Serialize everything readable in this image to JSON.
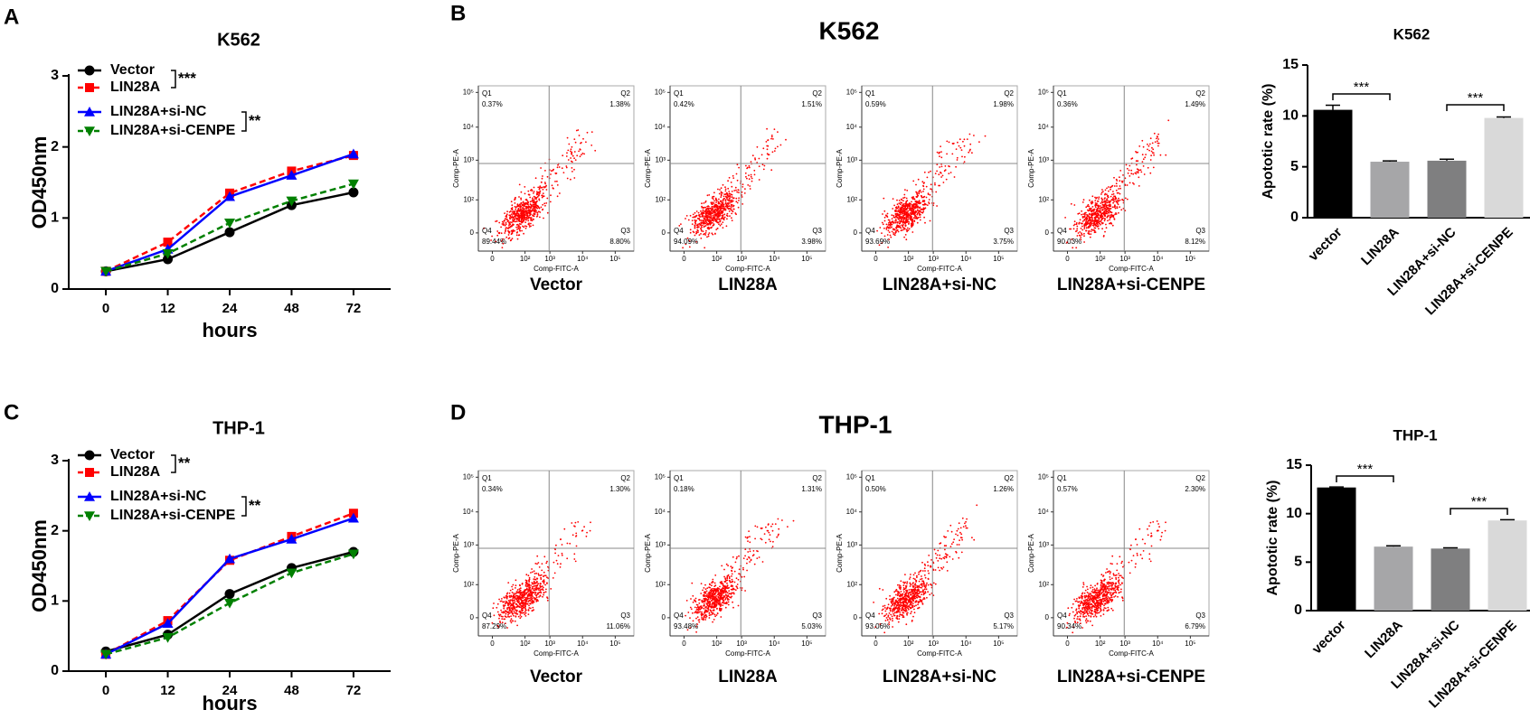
{
  "chart_data": [
    {
      "type": "line",
      "panel": "A",
      "title": "K562",
      "x_label": "hours",
      "y_label": "OD450nm",
      "categories": [
        "0",
        "12",
        "24",
        "48",
        "72"
      ],
      "ylim": [
        0,
        3
      ],
      "yticks": [
        0,
        1,
        2,
        3
      ],
      "series": [
        {
          "name": "Vector",
          "color": "#000000",
          "dashed": false,
          "marker": "circle",
          "values": [
            0.25,
            0.42,
            0.8,
            1.18,
            1.36
          ]
        },
        {
          "name": "LIN28A",
          "color": "#ff0000",
          "dashed": true,
          "marker": "square",
          "values": [
            0.25,
            0.66,
            1.35,
            1.66,
            1.88
          ]
        },
        {
          "name": "LIN28A+si-NC",
          "color": "#0000ff",
          "dashed": false,
          "marker": "triangle",
          "values": [
            0.25,
            0.56,
            1.3,
            1.6,
            1.9
          ]
        },
        {
          "name": "LIN28A+si-CENPE",
          "color": "#008000",
          "dashed": true,
          "marker": "triangle-down",
          "values": [
            0.25,
            0.5,
            0.93,
            1.24,
            1.48
          ]
        }
      ],
      "annotations": [
        "***",
        "**"
      ]
    },
    {
      "type": "bar",
      "title": "K562",
      "y_label": "Apototic rate (%)",
      "categories": [
        "vector",
        "LIN28A",
        "LIN28A+si-NC",
        "LIN28A+si-CENPE"
      ],
      "values": [
        10.6,
        5.5,
        5.6,
        9.8
      ],
      "errors": [
        0.45,
        0.08,
        0.15,
        0.1
      ],
      "colors": [
        "#000000",
        "#a6a6a8",
        "#7f7f80",
        "#d9d9d9"
      ],
      "ylim": [
        0,
        15
      ],
      "yticks": [
        0,
        5,
        10,
        15
      ],
      "annotations": [
        "***",
        "***"
      ]
    },
    {
      "type": "line",
      "panel": "C",
      "title": "THP-1",
      "x_label": "hours",
      "y_label": "OD450nm",
      "categories": [
        "0",
        "12",
        "24",
        "48",
        "72"
      ],
      "ylim": [
        0,
        3
      ],
      "yticks": [
        0,
        1,
        2,
        3
      ],
      "series": [
        {
          "name": "Vector",
          "color": "#000000",
          "dashed": false,
          "marker": "circle",
          "values": [
            0.28,
            0.52,
            1.1,
            1.47,
            1.7
          ]
        },
        {
          "name": "LIN28A",
          "color": "#ff0000",
          "dashed": true,
          "marker": "square",
          "values": [
            0.24,
            0.72,
            1.58,
            1.92,
            2.25
          ]
        },
        {
          "name": "LIN28A+si-NC",
          "color": "#0000ff",
          "dashed": false,
          "marker": "triangle",
          "values": [
            0.24,
            0.68,
            1.6,
            1.88,
            2.18
          ]
        },
        {
          "name": "LIN28A+si-CENPE",
          "color": "#008000",
          "dashed": true,
          "marker": "triangle-down",
          "values": [
            0.24,
            0.48,
            0.97,
            1.4,
            1.67
          ]
        }
      ],
      "annotations": [
        "**",
        "**"
      ]
    },
    {
      "type": "bar",
      "title": "THP-1",
      "y_label": "Apototic rate (%)",
      "categories": [
        "vector",
        "LIN28A",
        "LIN28A+si-NC",
        "LIN28A+si-CENPE"
      ],
      "values": [
        12.7,
        6.6,
        6.4,
        9.3
      ],
      "errors": [
        0.05,
        0.08,
        0.08,
        0.08
      ],
      "colors": [
        "#000000",
        "#a6a6a8",
        "#7f7f80",
        "#d9d9d9"
      ],
      "ylim": [
        0,
        15
      ],
      "yticks": [
        0,
        5,
        10,
        15
      ],
      "annotations": [
        "***",
        "***"
      ]
    }
  ],
  "flow_cytometry": [
    {
      "panel": "B",
      "title": "K562",
      "x_axis_label": "Comp-FITC-A",
      "y_axis_label": "Comp-PE-A",
      "x_ticks": [
        "0",
        "10²",
        "10³",
        "10⁴",
        "10⁵"
      ],
      "y_ticks": [
        "10⁵",
        "10⁴",
        "10³",
        "10²",
        "0"
      ],
      "quadrants": [
        "Q1",
        "Q2",
        "Q3",
        "Q4"
      ],
      "plots": [
        {
          "label": "Vector",
          "percentages": [
            "0.37%",
            "1.38%",
            "8.80%",
            "89.44%"
          ]
        },
        {
          "label": "LIN28A",
          "percentages": [
            "0.42%",
            "1.51%",
            "3.98%",
            "94.09%"
          ]
        },
        {
          "label": "LIN28A+si-NC",
          "percentages": [
            "0.59%",
            "1.98%",
            "3.75%",
            "93.69%"
          ]
        },
        {
          "label": "LIN28A+si-CENPE",
          "percentages": [
            "0.36%",
            "1.49%",
            "8.12%",
            "90.03%"
          ]
        }
      ]
    },
    {
      "panel": "D",
      "title": "THP-1",
      "x_axis_label": "Comp-FITC-A",
      "y_axis_label": "Comp-PE-A",
      "x_ticks": [
        "0",
        "10²",
        "10³",
        "10⁴",
        "10⁵"
      ],
      "y_ticks": [
        "10⁵",
        "10⁴",
        "10³",
        "10²",
        "0"
      ],
      "quadrants": [
        "Q1",
        "Q2",
        "Q3",
        "Q4"
      ],
      "plots": [
        {
          "label": "Vector",
          "percentages": [
            "0.34%",
            "1.30%",
            "11.06%",
            "87.29%"
          ]
        },
        {
          "label": "LIN28A",
          "percentages": [
            "0.18%",
            "1.31%",
            "5.03%",
            "93.48%"
          ]
        },
        {
          "label": "LIN28A+si-NC",
          "percentages": [
            "0.50%",
            "1.26%",
            "5.17%",
            "93.06%"
          ]
        },
        {
          "label": "LIN28A+si-CENPE",
          "percentages": [
            "0.57%",
            "2.30%",
            "6.79%",
            "90.34%"
          ]
        }
      ]
    }
  ]
}
